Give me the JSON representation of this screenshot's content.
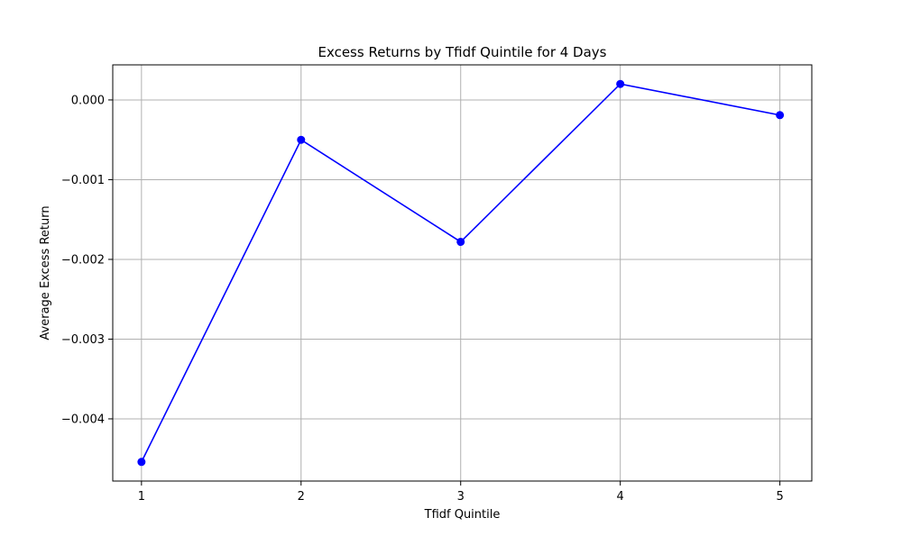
{
  "chart_data": {
    "type": "line",
    "title": "Excess Returns by Tfidf Quintile for 4 Days",
    "xlabel": "Tfidf Quintile",
    "ylabel": "Average Excess Return",
    "x": [
      1,
      2,
      3,
      4,
      5
    ],
    "x_tick_labels": [
      "1",
      "2",
      "3",
      "4",
      "5"
    ],
    "y_ticks": [
      0.0,
      -0.001,
      -0.002,
      -0.003,
      -0.004
    ],
    "y_tick_labels": [
      "0.000",
      "−0.001",
      "−0.002",
      "−0.003",
      "−0.004"
    ],
    "xlim": [
      0.82,
      5.2
    ],
    "ylim": [
      -0.00478,
      0.00044
    ],
    "grid": true,
    "series": [
      {
        "values": [
          -0.00454,
          -0.0005,
          -0.00178,
          0.0002,
          -0.00019
        ],
        "color": "#0000ff",
        "marker": "circle"
      }
    ]
  }
}
